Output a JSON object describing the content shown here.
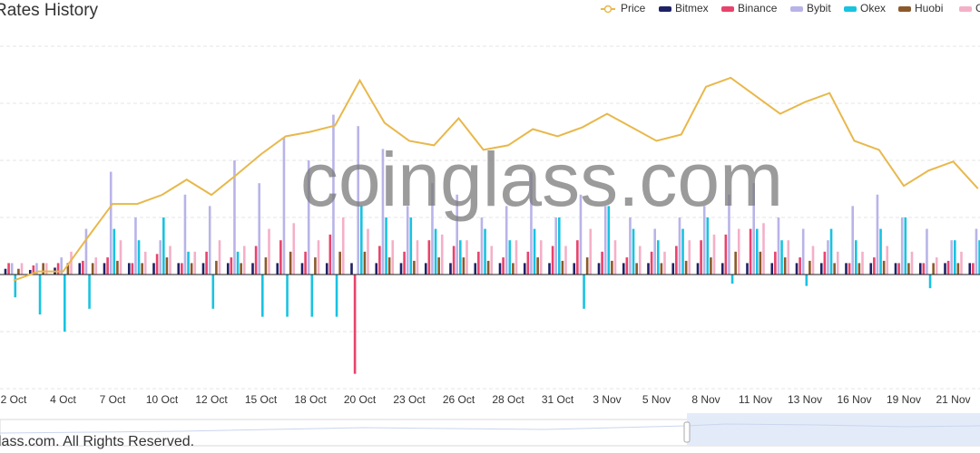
{
  "chart_data": {
    "type": "bar",
    "title": "Rates History",
    "watermark": "coinglass.com",
    "footer": "lass.com. All Rights Reserved.",
    "categories": [
      "2 Oct",
      null,
      "4 Oct",
      null,
      "7 Oct",
      null,
      "10 Oct",
      null,
      "12 Oct",
      null,
      "15 Oct",
      null,
      "18 Oct",
      null,
      "20 Oct",
      null,
      "23 Oct",
      null,
      "26 Oct",
      null,
      "28 Oct",
      null,
      "31 Oct",
      null,
      "3 Nov",
      null,
      "5 Nov",
      null,
      "8 Nov",
      null,
      "11 Nov",
      null,
      "13 Nov",
      null,
      "16 Nov",
      null,
      "19 Nov",
      null,
      "21 Nov",
      null
    ],
    "ylim": [
      -0.1,
      0.2
    ],
    "yticks": [
      -0.1,
      -0.05,
      0,
      0.05,
      0.1,
      0.15,
      0.2
    ],
    "y2lim": [
      33000,
      71000
    ],
    "grid": true,
    "series": [
      {
        "name": "Price",
        "type": "line",
        "axis": "y2",
        "color": "#e8b84b",
        "values": [
          45000,
          46000,
          46000,
          49800,
          53500,
          53500,
          54500,
          56200,
          54500,
          56700,
          59000,
          61000,
          61500,
          62200,
          67200,
          62500,
          60500,
          60000,
          63000,
          59500,
          60000,
          61800,
          61000,
          62000,
          63500,
          62000,
          60500,
          61200,
          66500,
          67500,
          65500,
          63500,
          64800,
          65800,
          60500,
          59500,
          55500,
          57200,
          58200,
          55200
        ]
      },
      {
        "name": "Bitmex",
        "color": "#1f2166",
        "values": [
          0.005,
          0.004,
          0.006,
          0.01,
          0.01,
          0.01,
          0.01,
          0.01,
          0.01,
          0.01,
          0.01,
          0.01,
          0.01,
          0.01,
          0.01,
          0.01,
          0.01,
          0.01,
          0.01,
          0.01,
          0.01,
          0.01,
          0.01,
          0.01,
          0.01,
          0.01,
          0.01,
          0.01,
          0.01,
          0.01,
          0.01,
          0.01,
          0.01,
          0.01,
          0.01,
          0.01,
          0.01,
          0.01,
          0.01,
          0.01
        ]
      },
      {
        "name": "Binance",
        "color": "#e8436b",
        "values": [
          0.01,
          0.008,
          0.01,
          0.012,
          0.015,
          0.01,
          0.018,
          0.01,
          0.02,
          0.015,
          0.025,
          0.03,
          0.02,
          0.035,
          -0.087,
          0.025,
          0.02,
          0.03,
          0.025,
          0.02,
          0.015,
          0.02,
          0.025,
          0.03,
          0.02,
          0.015,
          0.02,
          0.025,
          0.03,
          0.035,
          0.04,
          0.02,
          0.015,
          0.02,
          0.01,
          0.015,
          0.01,
          0.01,
          0.012,
          0.01
        ]
      },
      {
        "name": "Bybit",
        "color": "#b8b4e8",
        "values": [
          0.01,
          0.01,
          0.015,
          0.04,
          0.09,
          0.05,
          0.03,
          0.07,
          0.06,
          0.1,
          0.08,
          0.12,
          0.1,
          0.14,
          0.13,
          0.11,
          0.06,
          0.08,
          0.07,
          0.05,
          0.06,
          0.09,
          0.05,
          0.07,
          0.06,
          0.05,
          0.04,
          0.05,
          0.06,
          0.07,
          0.08,
          0.05,
          0.04,
          0.03,
          0.06,
          0.07,
          0.05,
          0.04,
          0.03,
          0.04
        ]
      },
      {
        "name": "Okex",
        "color": "#18c3e0",
        "values": [
          -0.02,
          -0.035,
          -0.05,
          -0.03,
          0.04,
          0.03,
          0.05,
          0.02,
          -0.03,
          0.02,
          -0.037,
          -0.037,
          -0.037,
          -0.037,
          0.06,
          0.05,
          0.05,
          0.04,
          0.03,
          0.04,
          0.03,
          0.04,
          0.05,
          -0.03,
          0.06,
          0.04,
          0.03,
          0.04,
          0.05,
          -0.008,
          0.04,
          0.03,
          -0.01,
          0.04,
          0.03,
          0.04,
          0.05,
          -0.012,
          0.03,
          0.03
        ]
      },
      {
        "name": "Huobi",
        "color": "#8b5a2b",
        "values": [
          0.005,
          0.01,
          0.01,
          0.01,
          0.012,
          0.01,
          0.015,
          0.01,
          0.012,
          0.01,
          0.015,
          0.02,
          0.015,
          0.02,
          0.02,
          0.015,
          0.012,
          0.015,
          0.015,
          0.012,
          0.01,
          0.015,
          0.012,
          0.015,
          0.012,
          0.01,
          0.01,
          0.012,
          0.015,
          0.02,
          0.02,
          0.015,
          0.012,
          0.01,
          0.01,
          0.012,
          0.01,
          0.01,
          0.01,
          0.01
        ]
      },
      {
        "name": "G",
        "color": "#f4b0c8",
        "values": [
          0.01,
          0.01,
          0.02,
          0.015,
          0.03,
          0.02,
          0.025,
          0.02,
          0.03,
          0.025,
          0.04,
          0.045,
          0.03,
          0.05,
          0.04,
          0.03,
          0.03,
          0.035,
          0.03,
          0.025,
          0.03,
          0.03,
          0.025,
          0.04,
          0.03,
          0.025,
          0.02,
          0.03,
          0.035,
          0.04,
          0.045,
          0.03,
          0.025,
          0.02,
          0.02,
          0.025,
          0.02,
          0.015,
          0.02,
          0.02
        ]
      }
    ]
  }
}
